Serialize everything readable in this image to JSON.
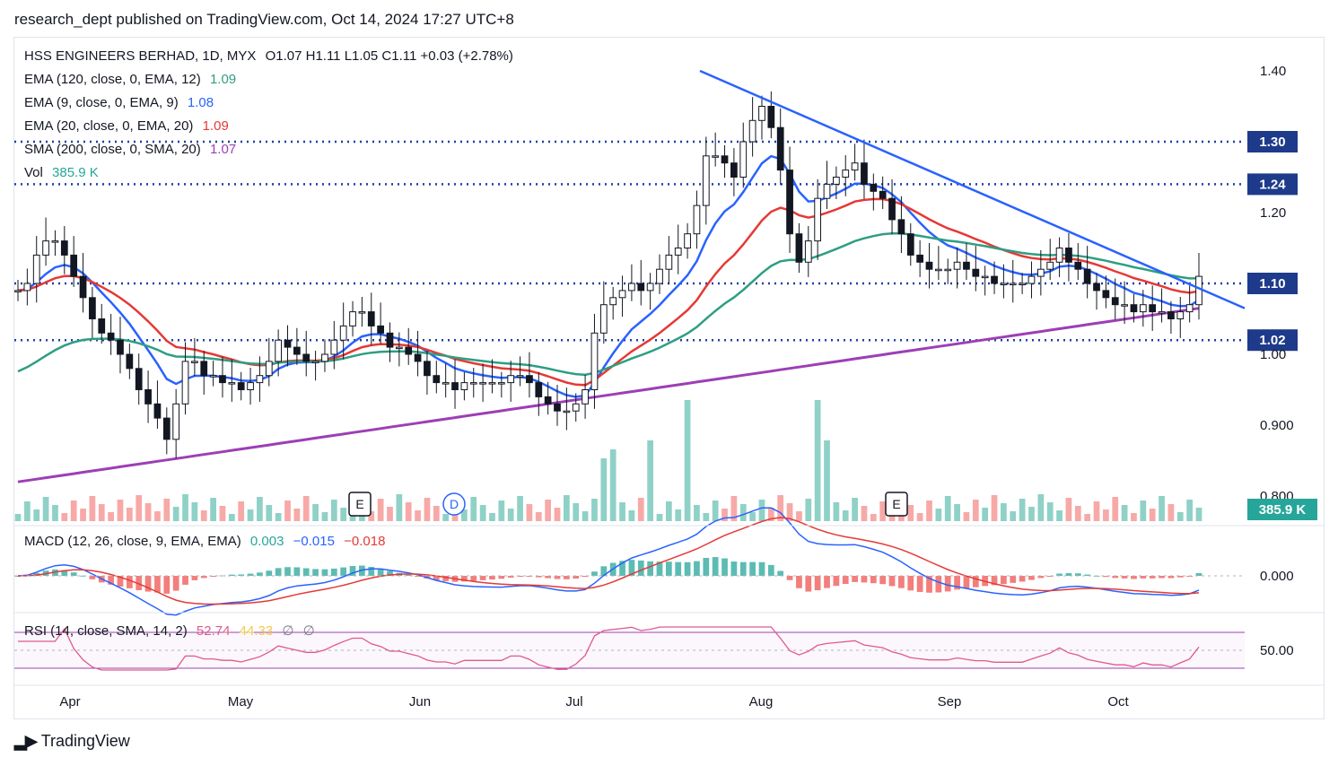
{
  "header": {
    "publisher": "research_dept published on TradingView.com, Oct 14, 2024 17:27 UTC+8"
  },
  "legend": {
    "symbol": "HSS ENGINEERS BERHAD, 1D, MYX",
    "ohlc": "O1.07  H1.11  L1.05  C1.11  +0.03 (+2.78%)",
    "ema120_label": "EMA (120, close, 0, EMA, 12)",
    "ema120_value": "1.09",
    "ema9_label": "EMA (9, close, 0, EMA, 9)",
    "ema9_value": "1.08",
    "ema20_label": "EMA (20, close, 0, EMA, 20)",
    "ema20_value": "1.09",
    "sma200_label": "SMA (200, close, 0, SMA, 20)",
    "sma200_value": "1.07",
    "vol_label": "Vol",
    "vol_value": "385.9 K",
    "macd_label": "MACD (12, 26, close, 9, EMA, EMA)",
    "macd_hist": "0.003",
    "macd_line": "−0.015",
    "macd_signal": "−0.018",
    "rsi_label": "RSI (14, close, SMA, 14, 2)",
    "rsi_value": "52.74",
    "rsi_ma": "44.33",
    "rsi_x1": "∅",
    "rsi_x2": "∅"
  },
  "colors": {
    "up": "#26a69a",
    "down": "#131722",
    "ema120": "#2e9e82",
    "ema9": "#2962ff",
    "ema20": "#e53935",
    "sma200": "#9c3fb5",
    "level": "#1e3fa8",
    "trend": "#2962ff",
    "vol_up": "#8fd1c7",
    "vol_down": "#f7a9a7",
    "macd": "#2962ff",
    "signal": "#e53935",
    "rsi": "#e05a8a",
    "rsi_band": "#9c3fb5"
  },
  "price_levels": [
    "1.30",
    "1.24",
    "1.10",
    "1.02"
  ],
  "price_axis_ticks": [
    "1.40",
    "1.20",
    "1.00",
    "0.900",
    "0.800"
  ],
  "volume_tag": "385.9 K",
  "macd_axis_tick": "0.000",
  "rsi_axis_tick": "50.00",
  "months": [
    "Apr",
    "May",
    "Jun",
    "Jul",
    "Aug",
    "Sep",
    "Oct"
  ],
  "event_markers": [
    "E",
    "D",
    "E"
  ],
  "footer": {
    "brand": "TradingView"
  },
  "chart_data": {
    "type": "candlestick",
    "title": "HSS ENGINEERS BERHAD, 1D, MYX",
    "ylim": [
      0.8,
      1.42
    ],
    "horizontal_levels": [
      1.3,
      1.24,
      1.1,
      1.02
    ],
    "trendline": {
      "from": [
        "Jul 20",
        1.4
      ],
      "to": [
        "Oct 20",
        1.07
      ]
    },
    "closes": [
      1.09,
      1.1,
      1.14,
      1.16,
      1.16,
      1.14,
      1.11,
      1.08,
      1.05,
      1.03,
      1.02,
      1.0,
      0.98,
      0.95,
      0.93,
      0.91,
      0.88,
      0.93,
      0.99,
      0.99,
      0.97,
      0.97,
      0.96,
      0.96,
      0.95,
      0.96,
      0.97,
      0.99,
      1.02,
      1.01,
      1.0,
      0.99,
      0.99,
      1.0,
      1.02,
      1.04,
      1.06,
      1.06,
      1.04,
      1.03,
      1.01,
      1.01,
      1.0,
      0.99,
      0.97,
      0.96,
      0.96,
      0.95,
      0.96,
      0.96,
      0.96,
      0.96,
      0.96,
      0.97,
      0.97,
      0.96,
      0.94,
      0.93,
      0.92,
      0.92,
      0.93,
      0.95,
      1.03,
      1.07,
      1.08,
      1.09,
      1.1,
      1.09,
      1.1,
      1.12,
      1.14,
      1.15,
      1.17,
      1.21,
      1.28,
      1.28,
      1.27,
      1.25,
      1.3,
      1.33,
      1.35,
      1.32,
      1.26,
      1.17,
      1.13,
      1.16,
      1.22,
      1.24,
      1.25,
      1.26,
      1.27,
      1.24,
      1.23,
      1.22,
      1.19,
      1.17,
      1.14,
      1.13,
      1.12,
      1.12,
      1.12,
      1.13,
      1.12,
      1.11,
      1.11,
      1.1,
      1.1,
      1.1,
      1.1,
      1.11,
      1.12,
      1.13,
      1.15,
      1.13,
      1.12,
      1.1,
      1.09,
      1.08,
      1.07,
      1.07,
      1.06,
      1.07,
      1.06,
      1.06,
      1.05,
      1.06,
      1.07,
      1.11
    ],
    "volume_last": "385.9K",
    "macd": {
      "macd": -0.015,
      "signal": -0.018,
      "hist": 0.003
    },
    "rsi": {
      "rsi": 52.74,
      "ma": 44.33,
      "bands": [
        30,
        70
      ]
    }
  }
}
